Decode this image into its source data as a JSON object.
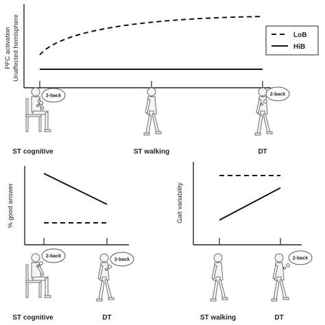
{
  "top_panel": {
    "ylabel_line1": "PFC activation",
    "ylabel_line2": "Unaffected hemisphere",
    "conditions": [
      "ST cognitive",
      "ST walking",
      "DT"
    ],
    "legend": [
      {
        "label": "LoB",
        "style": "dashed"
      },
      {
        "label": "HiB",
        "style": "solid"
      }
    ]
  },
  "bottom_left_panel": {
    "ylabel": "% good answer",
    "conditions": [
      "ST cognitive",
      "DT"
    ]
  },
  "bottom_right_panel": {
    "ylabel": "Gait variability",
    "conditions": [
      "ST walking",
      "DT"
    ]
  },
  "thought_bubble_text": "2-back",
  "icons": {
    "seated": "seated-person-icon",
    "walking": "walking-person-icon",
    "bubble": "thought-bubble-icon"
  },
  "colors": {
    "lines": "#111111",
    "figures": "#f4f4f4"
  }
}
